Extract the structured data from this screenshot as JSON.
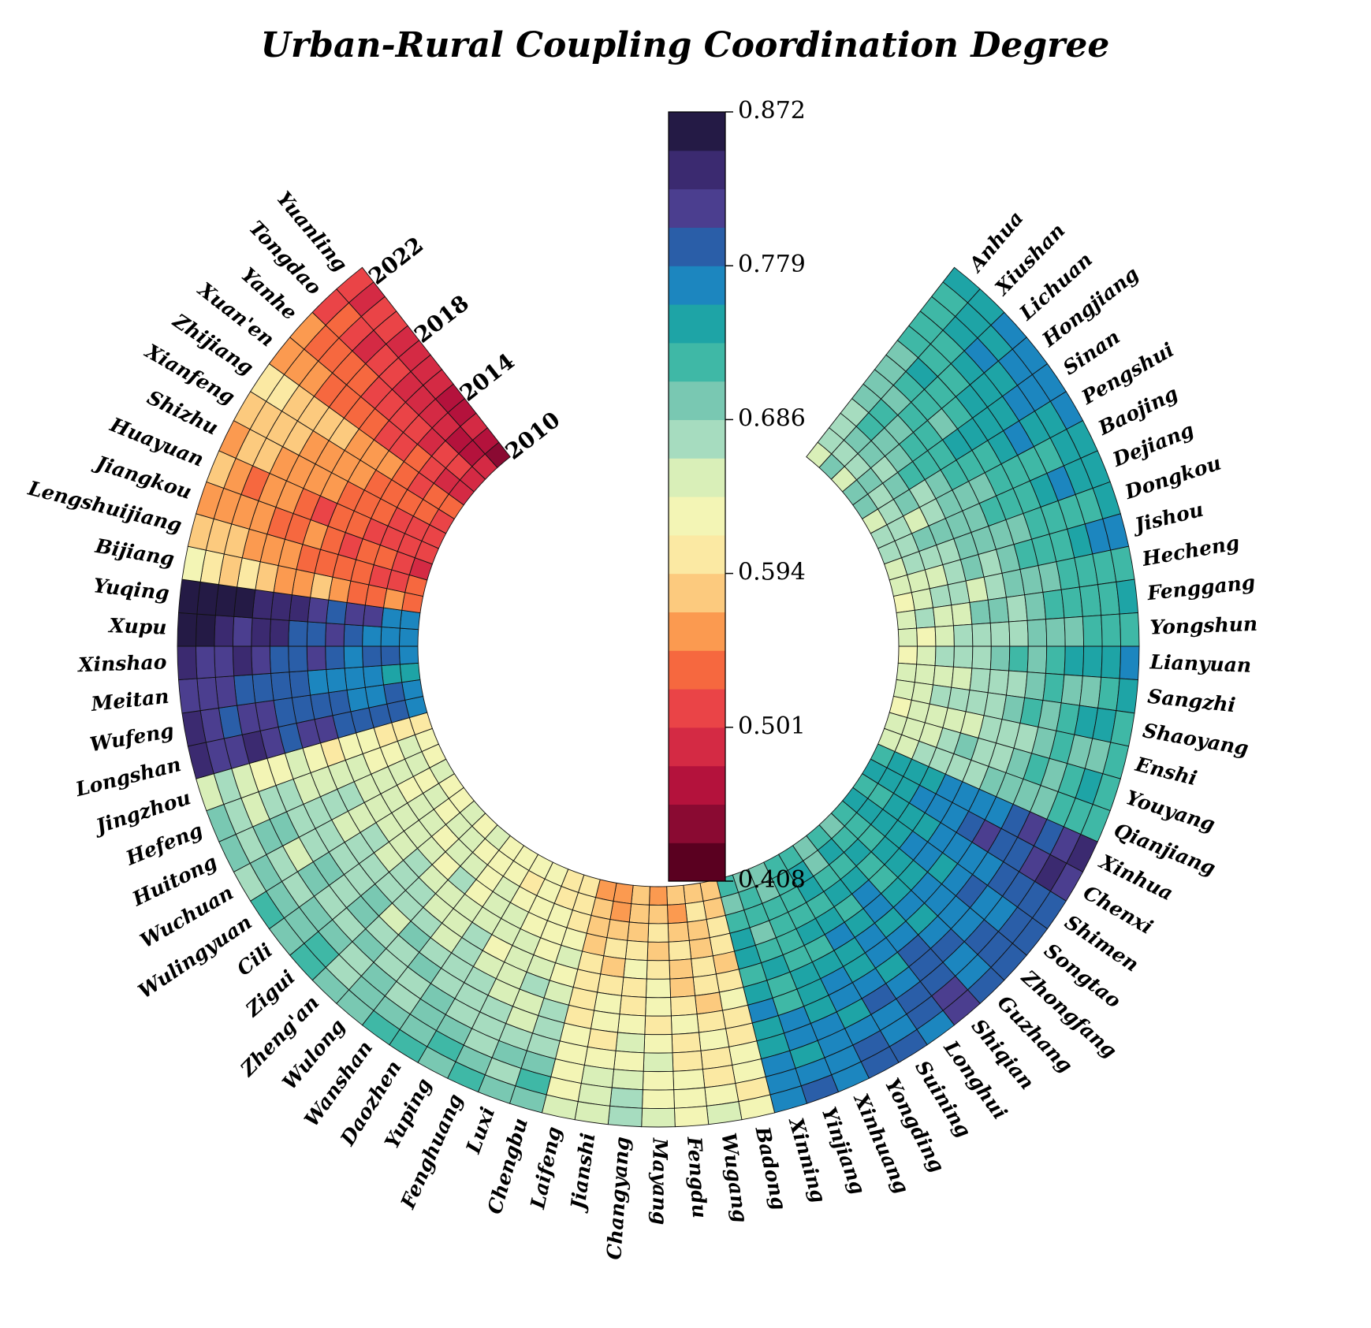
{
  "chart_data": {
    "type": "heatmap",
    "title": "Urban-Rural Coupling Coordination Degree",
    "years": [
      2010,
      2011,
      2012,
      2013,
      2014,
      2015,
      2016,
      2017,
      2018,
      2019,
      2020,
      2021,
      2022
    ],
    "year_labels": [
      "2010",
      "2014",
      "2018",
      "2022"
    ],
    "colorbar": {
      "min": 0.408,
      "max": 0.872,
      "ticks": [
        "0.408",
        "0.501",
        "0.594",
        "0.686",
        "0.779",
        "0.872"
      ],
      "colors": [
        "#5a0020",
        "#8a0a32",
        "#b4123c",
        "#d42a44",
        "#ea4447",
        "#f6683f",
        "#fb9a50",
        "#fcca7e",
        "#fbe9a3",
        "#f3f5b5",
        "#d9efb8",
        "#a6dcbf",
        "#79c8b2",
        "#3fb8a6",
        "#1ea4a6",
        "#1c86bf",
        "#2a5ea8",
        "#4b3e8f",
        "#3b2a70",
        "#241a45"
      ]
    },
    "counties": [
      {
        "name": "Anhua",
        "start": 0.66,
        "end": 0.74
      },
      {
        "name": "Xiushan",
        "start": 0.69,
        "end": 0.75
      },
      {
        "name": "Lichuan",
        "start": 0.67,
        "end": 0.77
      },
      {
        "name": "Hongjiang",
        "start": 0.68,
        "end": 0.76
      },
      {
        "name": "Sinan",
        "start": 0.69,
        "end": 0.78
      },
      {
        "name": "Pengshui",
        "start": 0.67,
        "end": 0.77
      },
      {
        "name": "Baojing",
        "start": 0.66,
        "end": 0.75
      },
      {
        "name": "Dejiang",
        "start": 0.68,
        "end": 0.76
      },
      {
        "name": "Dongkou",
        "start": 0.66,
        "end": 0.74
      },
      {
        "name": "Jishou",
        "start": 0.65,
        "end": 0.76
      },
      {
        "name": "Hecheng",
        "start": 0.64,
        "end": 0.73
      },
      {
        "name": "Fenggang",
        "start": 0.65,
        "end": 0.74
      },
      {
        "name": "Yongshun",
        "start": 0.64,
        "end": 0.73
      },
      {
        "name": "Lianyuan",
        "start": 0.65,
        "end": 0.76
      },
      {
        "name": "Sangzhi",
        "start": 0.64,
        "end": 0.73
      },
      {
        "name": "Shaoyang",
        "start": 0.65,
        "end": 0.74
      },
      {
        "name": "Enshi",
        "start": 0.64,
        "end": 0.72
      },
      {
        "name": "Youyang",
        "start": 0.65,
        "end": 0.73
      },
      {
        "name": "Qianjiang",
        "start": 0.66,
        "end": 0.72
      },
      {
        "name": "Xinhua",
        "start": 0.73,
        "end": 0.82
      },
      {
        "name": "Chenxi",
        "start": 0.74,
        "end": 0.83
      },
      {
        "name": "Shimen",
        "start": 0.73,
        "end": 0.8
      },
      {
        "name": "Songtao",
        "start": 0.73,
        "end": 0.79
      },
      {
        "name": "Zhongfang",
        "start": 0.72,
        "end": 0.79
      },
      {
        "name": "Guzhang",
        "start": 0.71,
        "end": 0.79
      },
      {
        "name": "Shiqian",
        "start": 0.72,
        "end": 0.81
      },
      {
        "name": "Longhui",
        "start": 0.71,
        "end": 0.79
      },
      {
        "name": "Suining",
        "start": 0.72,
        "end": 0.79
      },
      {
        "name": "Yongding",
        "start": 0.71,
        "end": 0.78
      },
      {
        "name": "Xinhuang",
        "start": 0.71,
        "end": 0.77
      },
      {
        "name": "Yinjiang",
        "start": 0.7,
        "end": 0.77
      },
      {
        "name": "Xinning",
        "start": 0.71,
        "end": 0.77
      },
      {
        "name": "Badong",
        "start": 0.59,
        "end": 0.63
      },
      {
        "name": "Wugang",
        "start": 0.58,
        "end": 0.63
      },
      {
        "name": "Fengdu",
        "start": 0.57,
        "end": 0.64
      },
      {
        "name": "Mayang",
        "start": 0.58,
        "end": 0.65
      },
      {
        "name": "Changyang",
        "start": 0.58,
        "end": 0.67
      },
      {
        "name": "Jianshi",
        "start": 0.56,
        "end": 0.66
      },
      {
        "name": "Laifeng",
        "start": 0.57,
        "end": 0.65
      },
      {
        "name": "Chengbu",
        "start": 0.6,
        "end": 0.71
      },
      {
        "name": "Luxi",
        "start": 0.61,
        "end": 0.7
      },
      {
        "name": "Fenghuang",
        "start": 0.62,
        "end": 0.7
      },
      {
        "name": "Yuping",
        "start": 0.61,
        "end": 0.71
      },
      {
        "name": "Daozhen",
        "start": 0.63,
        "end": 0.72
      },
      {
        "name": "Wanshan",
        "start": 0.62,
        "end": 0.71
      },
      {
        "name": "Wulong",
        "start": 0.64,
        "end": 0.71
      },
      {
        "name": "Zheng'an",
        "start": 0.63,
        "end": 0.7
      },
      {
        "name": "Zigui",
        "start": 0.64,
        "end": 0.71
      },
      {
        "name": "Cili",
        "start": 0.63,
        "end": 0.7
      },
      {
        "name": "Wulingyuan",
        "start": 0.64,
        "end": 0.7
      },
      {
        "name": "Wuchuan",
        "start": 0.63,
        "end": 0.69
      },
      {
        "name": "Huitong",
        "start": 0.64,
        "end": 0.7
      },
      {
        "name": "Hefeng",
        "start": 0.63,
        "end": 0.68
      },
      {
        "name": "Jingzhou",
        "start": 0.6,
        "end": 0.66
      },
      {
        "name": "Longshan",
        "start": 0.78,
        "end": 0.83
      },
      {
        "name": "Wufeng",
        "start": 0.77,
        "end": 0.82
      },
      {
        "name": "Meitan",
        "start": 0.74,
        "end": 0.82
      },
      {
        "name": "Xinshao",
        "start": 0.77,
        "end": 0.83
      },
      {
        "name": "Xupu",
        "start": 0.76,
        "end": 0.86
      },
      {
        "name": "Yuqing",
        "start": 0.78,
        "end": 0.87
      },
      {
        "name": "Bijiang",
        "start": 0.53,
        "end": 0.61
      },
      {
        "name": "Lengshuijiang",
        "start": 0.52,
        "end": 0.58
      },
      {
        "name": "Jiangkou",
        "start": 0.51,
        "end": 0.57
      },
      {
        "name": "Huayuan",
        "start": 0.5,
        "end": 0.57
      },
      {
        "name": "Shizhu",
        "start": 0.51,
        "end": 0.58
      },
      {
        "name": "Xianfeng",
        "start": 0.52,
        "end": 0.59
      },
      {
        "name": "Zhijiang",
        "start": 0.52,
        "end": 0.6
      },
      {
        "name": "Xuan'en",
        "start": 0.5,
        "end": 0.56
      },
      {
        "name": "Yanhe",
        "start": 0.49,
        "end": 0.54
      },
      {
        "name": "Tongdao",
        "start": 0.47,
        "end": 0.52
      },
      {
        "name": "Yuanling",
        "start": 0.46,
        "end": 0.51
      }
    ]
  }
}
